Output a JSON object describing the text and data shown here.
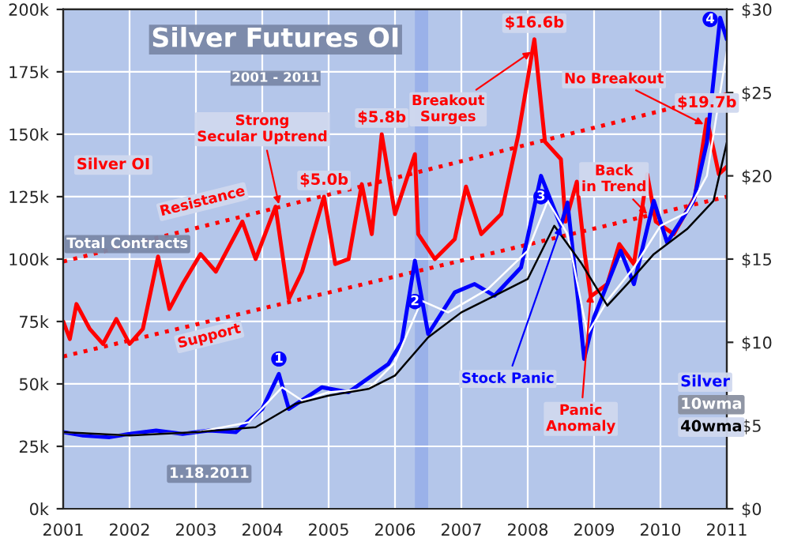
{
  "chart_data": {
    "type": "line",
    "title": "Silver Futures OI",
    "subtitle": "2001 - 2011",
    "xlim": [
      2001,
      2011
    ],
    "xticks": [
      2001,
      2002,
      2003,
      2004,
      2005,
      2006,
      2007,
      2008,
      2009,
      2010,
      2011
    ],
    "ylim": [
      0,
      200000
    ],
    "yticks": [
      {
        "value": 0,
        "label": "0k"
      },
      {
        "value": 25000,
        "label": "25k"
      },
      {
        "value": 50000,
        "label": "50k"
      },
      {
        "value": 75000,
        "label": "75k"
      },
      {
        "value": 100000,
        "label": "100k"
      },
      {
        "value": 125000,
        "label": "125k"
      },
      {
        "value": 150000,
        "label": "150k"
      },
      {
        "value": 175000,
        "label": "175k"
      },
      {
        "value": 200000,
        "label": "200k"
      }
    ],
    "y2lim": [
      0,
      30
    ],
    "y2ticks": [
      {
        "value": 0,
        "label": "$0"
      },
      {
        "value": 5,
        "label": "$5"
      },
      {
        "value": 10,
        "label": "$10"
      },
      {
        "value": 15,
        "label": "$15"
      },
      {
        "value": 20,
        "label": "$20"
      },
      {
        "value": 25,
        "label": "$25"
      },
      {
        "value": 30,
        "label": "$30"
      }
    ],
    "grid": true,
    "bands": [
      {
        "axis": "x",
        "from": 2006.3,
        "to": 2006.5,
        "color": "#8fa8e8"
      }
    ],
    "series": [
      {
        "name": "Silver OI",
        "color": "#ff0000",
        "x": [
          2001.0,
          2001.1,
          2001.2,
          2001.4,
          2001.6,
          2001.8,
          2002.0,
          2002.2,
          2002.43,
          2002.6,
          2002.8,
          2003.07,
          2003.3,
          2003.5,
          2003.7,
          2003.9,
          2004.2,
          2004.4,
          2004.6,
          2004.93,
          2005.1,
          2005.3,
          2005.5,
          2005.65,
          2005.8,
          2006.0,
          2006.3,
          2006.35,
          2006.6,
          2006.9,
          2007.07,
          2007.3,
          2007.6,
          2007.86,
          2008.1,
          2008.26,
          2008.5,
          2008.57,
          2008.74,
          2008.86,
          2008.95,
          2009.2,
          2009.38,
          2009.6,
          2009.8,
          2009.93,
          2010.2,
          2010.52,
          2010.7,
          2010.8,
          2010.88,
          2011.0
        ],
        "values": [
          75000,
          68000,
          82000,
          72000,
          66000,
          76000,
          66000,
          72000,
          101000,
          80000,
          90000,
          102000,
          95000,
          105000,
          115000,
          100000,
          121000,
          84000,
          95000,
          125000,
          98000,
          100000,
          130000,
          110000,
          150000,
          118000,
          142000,
          110000,
          100000,
          108000,
          129000,
          110000,
          118000,
          150000,
          188000,
          147000,
          140000,
          115000,
          131000,
          102000,
          85000,
          90000,
          106000,
          98000,
          134000,
          115000,
          110000,
          125000,
          156000,
          144000,
          134000,
          137000
        ]
      },
      {
        "name": "Silver",
        "color": "#0000ff",
        "axis": "y2",
        "x": [
          2001.0,
          2001.3,
          2001.7,
          2002.0,
          2002.4,
          2002.8,
          2003.2,
          2003.6,
          2004.0,
          2004.25,
          2004.4,
          2004.9,
          2005.3,
          2005.9,
          2006.1,
          2006.3,
          2006.5,
          2006.9,
          2007.2,
          2007.5,
          2007.9,
          2008.2,
          2008.5,
          2008.6,
          2008.8,
          2008.85,
          2009.0,
          2009.4,
          2009.6,
          2009.9,
          2010.1,
          2010.5,
          2010.7,
          2010.9,
          2011.0
        ],
        "values": [
          4.6,
          4.4,
          4.3,
          4.5,
          4.7,
          4.5,
          4.7,
          4.6,
          6.0,
          8.1,
          6.0,
          7.3,
          7.0,
          8.7,
          10.0,
          14.9,
          10.5,
          13.0,
          13.5,
          12.8,
          14.5,
          20.0,
          17.0,
          18.4,
          11.0,
          9.0,
          11.5,
          15.5,
          13.5,
          18.5,
          16.0,
          18.5,
          22.0,
          29.5,
          28.2
        ]
      },
      {
        "name": "10wma",
        "color": "#ffffff",
        "axis": "y2",
        "x": [
          2001.0,
          2002.0,
          2003.0,
          2003.8,
          2004.3,
          2004.6,
          2005.0,
          2005.6,
          2006.0,
          2006.4,
          2006.8,
          2007.4,
          2008.0,
          2008.3,
          2008.6,
          2008.9,
          2009.2,
          2009.6,
          2010.0,
          2010.4,
          2010.7,
          2011.0
        ],
        "values": [
          4.6,
          4.4,
          4.6,
          5.2,
          7.3,
          6.5,
          7.0,
          7.2,
          8.8,
          12.5,
          11.8,
          13.2,
          15.5,
          18.5,
          16.5,
          10.5,
          12.5,
          14.5,
          17.0,
          17.8,
          20.0,
          27.5
        ]
      },
      {
        "name": "40wma",
        "color": "#000000",
        "axis": "y2",
        "x": [
          2001.0,
          2002.0,
          2003.0,
          2003.9,
          2004.5,
          2005.0,
          2005.6,
          2006.0,
          2006.5,
          2007.0,
          2007.5,
          2008.0,
          2008.4,
          2008.8,
          2009.2,
          2009.5,
          2009.9,
          2010.4,
          2010.8,
          2011.0
        ],
        "values": [
          4.6,
          4.4,
          4.6,
          4.9,
          6.3,
          6.8,
          7.2,
          8.0,
          10.3,
          11.8,
          12.8,
          13.8,
          17.0,
          14.8,
          12.2,
          13.5,
          15.3,
          16.8,
          18.5,
          22.0
        ]
      },
      {
        "type": "line",
        "color": "#ff0000",
        "line_style": "dotted",
        "x": [
          2001,
          2011
        ],
        "values": [
          99000,
          166000
        ]
      },
      {
        "type": "line",
        "color": "#ff0000",
        "line_style": "dotted",
        "x": [
          2001,
          2011
        ],
        "values": [
          61000,
          125000
        ]
      }
    ],
    "annotations": [
      {
        "text": "$5.0b",
        "x": 2004.93,
        "y": 125000
      },
      {
        "text": "$5.8b",
        "x": 2005.8,
        "y": 150000
      },
      {
        "text": "$16.6b",
        "x": 2008.1,
        "y": 188000
      },
      {
        "text": "$19.7b",
        "x": 2010.7,
        "y": 156000
      },
      "Total Contracts",
      {
        "text": "Strong Secular Uptrend",
        "x": 2004.25,
        "y": 122000
      },
      "Resistance",
      "Support",
      {
        "text": "Breakout Surges",
        "x": 2008.05,
        "y": 183000
      },
      {
        "text": "No Breakout",
        "x": 2010.65,
        "y": 154000
      },
      {
        "text": "Back in Trend",
        "x": 2009.8,
        "y": 118000
      },
      {
        "text": "Stock Panic",
        "x": 2008.5,
        "y": 113000
      },
      {
        "text": "Panic Anomaly",
        "x": 2008.95,
        "y": 86000
      },
      "1.18.2011",
      "1",
      "2",
      "3",
      "4"
    ]
  }
}
